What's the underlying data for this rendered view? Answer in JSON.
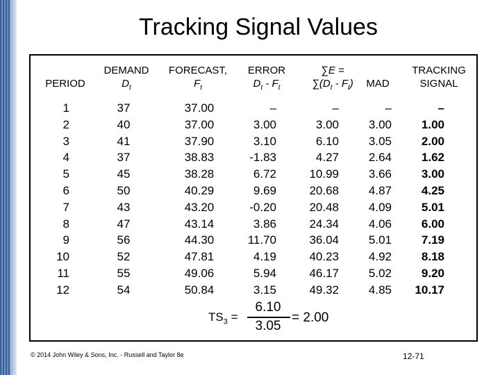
{
  "title": "Tracking Signal Values",
  "headers": {
    "period": "PERIOD",
    "demand": "DEMAND",
    "demand_sub": "D",
    "demand_subscript": "t",
    "forecast": "FORECAST,",
    "forecast_sub": "F",
    "forecast_subscript": "t",
    "error": "ERROR",
    "error_sub": "D",
    "error_sub_t1": "t",
    "error_minus": " - F",
    "error_sub_t2": "t",
    "cum_line1": "∑E =",
    "cum_line2_a": "∑(D",
    "cum_sub_t1": "t",
    "cum_line2_b": " - F",
    "cum_sub_t2": "t",
    "cum_close": ")",
    "mad": "MAD",
    "ts_line1": "TRACKING",
    "ts_line2": "SIGNAL"
  },
  "table": {
    "period": [
      "1",
      "2",
      "3",
      "4",
      "5",
      "6",
      "7",
      "8",
      "9",
      "10",
      "11",
      "12"
    ],
    "demand": [
      "37",
      "40",
      "41",
      "37",
      "45",
      "50",
      "43",
      "47",
      "56",
      "52",
      "55",
      "54"
    ],
    "forecast": [
      "37.00",
      "37.00",
      "37.90",
      "38.83",
      "38.28",
      "40.29",
      "43.20",
      "43.14",
      "44.30",
      "47.81",
      "49.06",
      "50.84"
    ],
    "error": [
      "–",
      "3.00",
      "3.10",
      "-1.83",
      "6.72",
      "9.69",
      "-0.20",
      "3.86",
      "11.70",
      "4.19",
      "5.94",
      "3.15"
    ],
    "cum_error": [
      "–",
      "3.00",
      "6.10",
      "4.27",
      "10.99",
      "20.68",
      "20.48",
      "24.34",
      "36.04",
      "40.23",
      "46.17",
      "49.32"
    ],
    "mad": [
      "–",
      "3.00",
      "3.05",
      "2.64",
      "3.66",
      "4.87",
      "4.09",
      "4.06",
      "5.01",
      "4.92",
      "5.02",
      "4.85"
    ],
    "tracking_signal": [
      "–",
      "1.00",
      "2.00",
      "1.62",
      "3.00",
      "4.25",
      "5.01",
      "6.00",
      "7.19",
      "8.18",
      "9.20",
      "10.17"
    ]
  },
  "formula": {
    "label": "TS",
    "label_sub": "3",
    "equals": " =",
    "numerator": "6.10",
    "denominator": "3.05",
    "result": "= 2.00"
  },
  "footer": "© 2014 John Wiley & Sons, Inc. - Russell and Taylor 8e",
  "page_number": "12-71"
}
